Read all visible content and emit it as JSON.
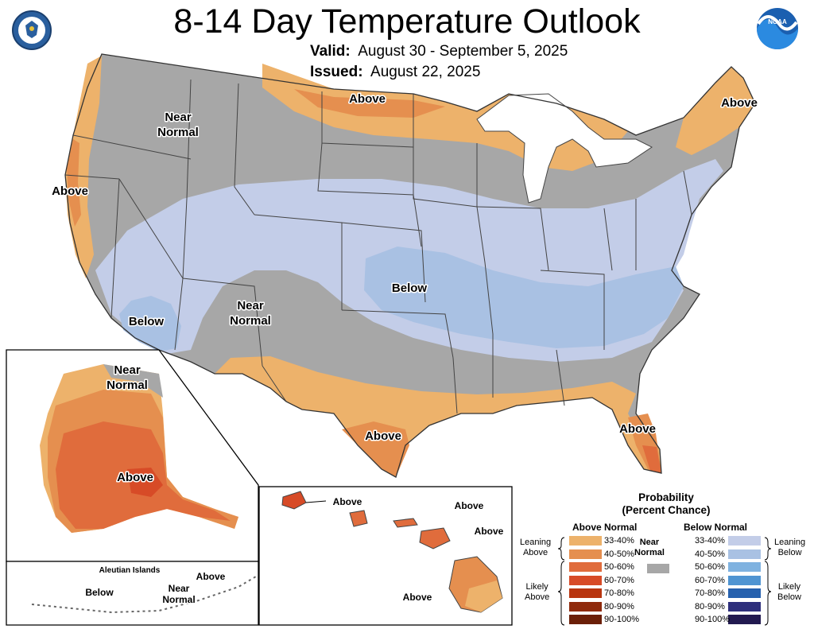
{
  "header": {
    "title": "8-14 Day Temperature Outlook",
    "valid_label": "Valid:",
    "valid_value": "August 30 - September 5, 2025",
    "issued_label": "Issued:",
    "issued_value": "August 22, 2025"
  },
  "logos": {
    "left": "us-department-of-commerce-seal",
    "right": "noaa-logo"
  },
  "map_labels": {
    "near_normal_nw": [
      "Near",
      "Normal"
    ],
    "above_north": "Above",
    "above_northeast": "Above",
    "above_west": "Above",
    "below_central": "Below",
    "below_southwest": "Below",
    "near_normal_sw": [
      "Near",
      "Normal"
    ],
    "above_south": "Above",
    "above_florida": "Above"
  },
  "alaska": {
    "near_normal": [
      "Near",
      "Normal"
    ],
    "above": "Above"
  },
  "aleutians": {
    "title": "Aleutian Islands",
    "above": "Above",
    "near_normal": [
      "Near",
      "Normal"
    ],
    "below": "Below"
  },
  "hawaii": {
    "labels": [
      "Above",
      "Above",
      "Above",
      "Above"
    ]
  },
  "legend": {
    "title": [
      "Probability",
      "(Percent Chance)"
    ],
    "above_header": "Above Normal",
    "below_header": "Below Normal",
    "near_normal": [
      "Near",
      "Normal"
    ],
    "leaning_above": [
      "Leaning",
      "Above"
    ],
    "likely_above": [
      "Likely",
      "Above"
    ],
    "leaning_below": [
      "Leaning",
      "Below"
    ],
    "likely_below": [
      "Likely",
      "Below"
    ],
    "ranges": [
      "33-40%",
      "40-50%",
      "50-60%",
      "60-70%",
      "70-80%",
      "80-90%",
      "90-100%"
    ],
    "above_colors": [
      "#EDB26B",
      "#E58F4F",
      "#E06C3C",
      "#D74B27",
      "#B8350F",
      "#8F2A0C",
      "#6B1F08"
    ],
    "below_colors": [
      "#C3CDE8",
      "#A9C1E3",
      "#7FB2E0",
      "#4F94D2",
      "#2661AE",
      "#2E2F7C",
      "#221A50"
    ],
    "near_color": "#A7A7A7"
  },
  "colors": {
    "near": "#A7A7A7",
    "leaning_above": "#EDB26B",
    "above_40": "#E58F4F",
    "above_50": "#E06C3C",
    "above_60": "#D74B27",
    "leaning_below": "#C3CDE8",
    "below_40": "#A9C1E3"
  }
}
